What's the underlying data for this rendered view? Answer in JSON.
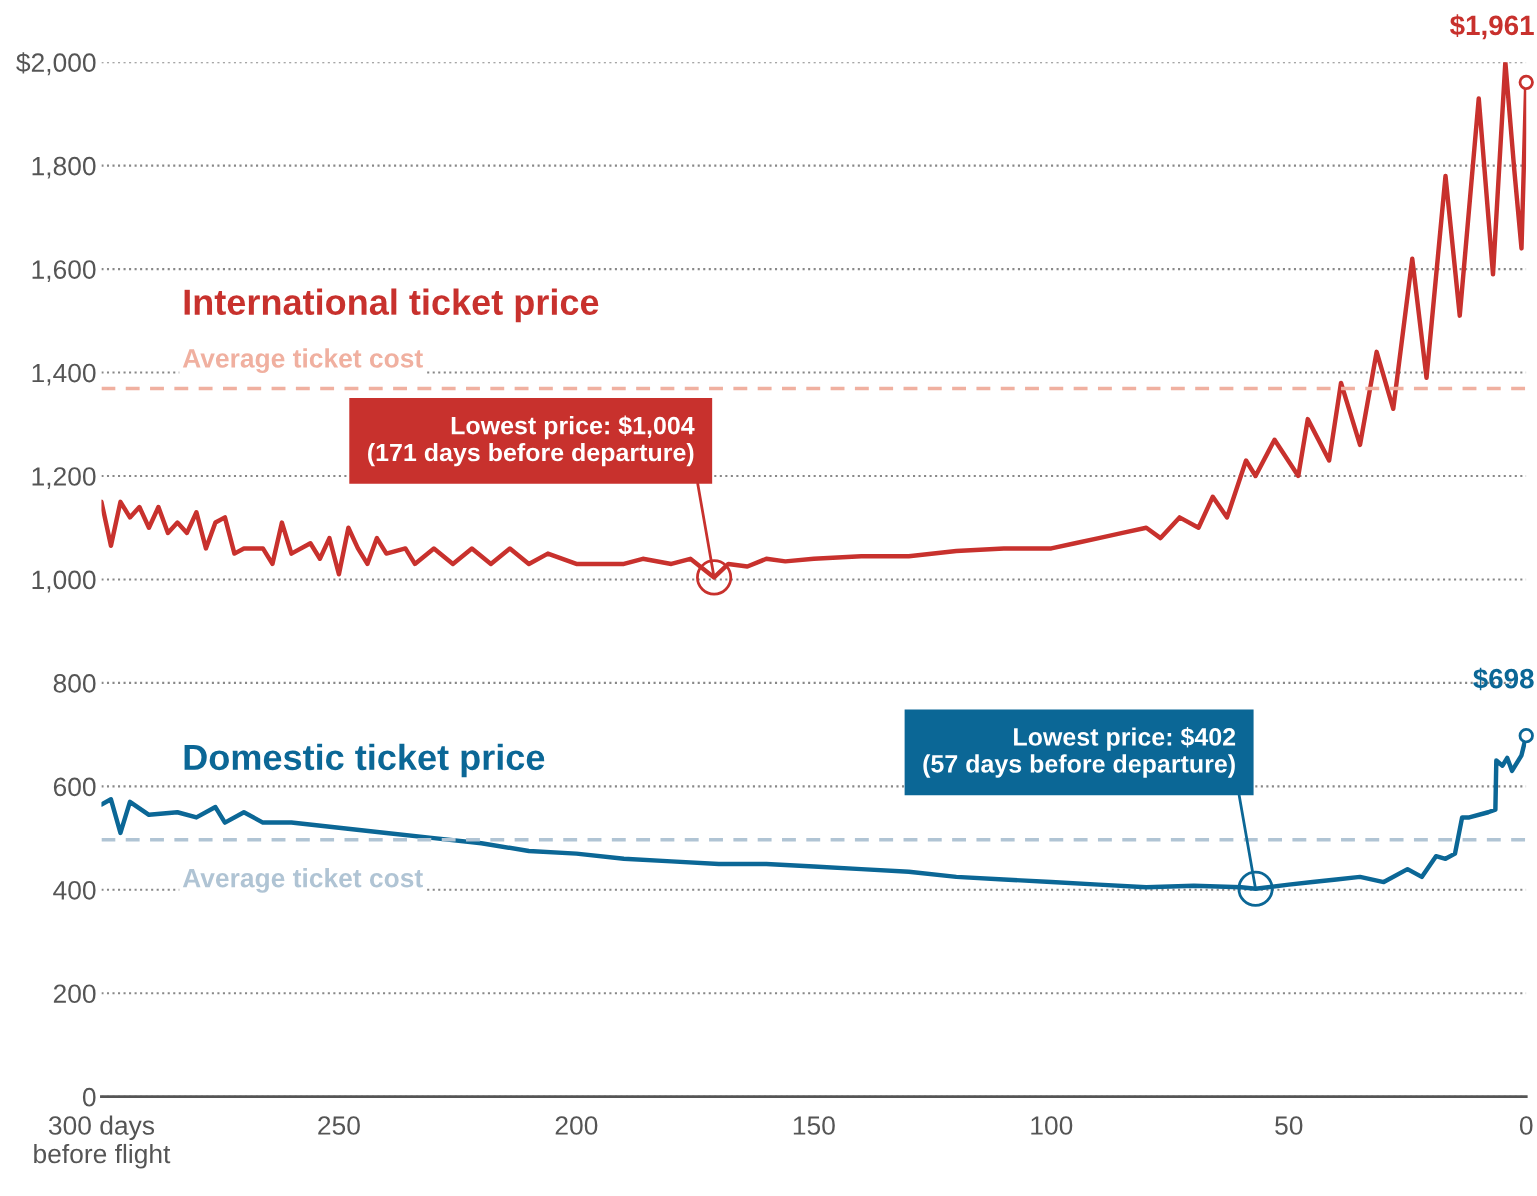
{
  "chart_data": {
    "type": "line",
    "xlim": [
      300,
      0
    ],
    "xticks": [
      {
        "value": 300,
        "label": "300 days\nbefore flight"
      },
      250,
      200,
      150,
      100,
      50,
      0
    ],
    "ylim": [
      0,
      2000
    ],
    "yticks": [
      0,
      200,
      400,
      600,
      800,
      {
        "value": 1000,
        "label": "1,000"
      },
      {
        "value": 1200,
        "label": "1,200"
      },
      {
        "value": 1400,
        "label": "1,400"
      },
      {
        "value": 1600,
        "label": "1,600"
      },
      {
        "value": 1800,
        "label": "1,800"
      },
      {
        "value": 2000,
        "label": "$2,000"
      }
    ],
    "grid": "y",
    "legend": false,
    "series": [
      {
        "name": "International ticket price",
        "color": "#c8312d",
        "x": [
          300,
          298,
          296,
          294,
          292,
          290,
          288,
          286,
          284,
          282,
          280,
          278,
          276,
          274,
          272,
          270,
          266,
          264,
          262,
          260,
          256,
          254,
          252,
          250,
          248,
          246,
          244,
          242,
          240,
          236,
          234,
          230,
          226,
          222,
          218,
          214,
          210,
          206,
          200,
          196,
          190,
          186,
          180,
          176,
          171,
          168,
          164,
          160,
          156,
          150,
          140,
          130,
          120,
          110,
          100,
          95,
          90,
          85,
          80,
          77,
          73,
          69,
          66,
          63,
          59,
          57,
          53,
          48,
          46,
          41.5,
          39,
          35,
          31.5,
          28,
          24,
          21,
          17,
          14,
          10,
          7,
          4.4,
          2.5,
          1,
          0
        ],
        "values": [
          1150,
          1065,
          1150,
          1120,
          1140,
          1100,
          1140,
          1090,
          1110,
          1090,
          1130,
          1060,
          1110,
          1120,
          1050,
          1060,
          1060,
          1030,
          1110,
          1050,
          1070,
          1040,
          1080,
          1010,
          1100,
          1060,
          1030,
          1080,
          1050,
          1060,
          1030,
          1060,
          1030,
          1060,
          1030,
          1060,
          1030,
          1050,
          1030,
          1030,
          1030,
          1040,
          1030,
          1040,
          1004,
          1030,
          1025,
          1040,
          1035,
          1040,
          1045,
          1045,
          1055,
          1060,
          1060,
          1070,
          1080,
          1090,
          1100,
          1080,
          1120,
          1100,
          1160,
          1120,
          1230,
          1200,
          1270,
          1200,
          1310,
          1230,
          1380,
          1260,
          1440,
          1330,
          1620,
          1390,
          1780,
          1510,
          1930,
          1590,
          2000,
          1790,
          1640,
          1961
        ]
      },
      {
        "name": "Domestic ticket price",
        "color": "#0b6796",
        "x": [
          300,
          298,
          296,
          294,
          290,
          284,
          280,
          276,
          274,
          270,
          266,
          260,
          250,
          240,
          230,
          220,
          210,
          200,
          190,
          180,
          170,
          160,
          150,
          140,
          130,
          120,
          110,
          100,
          90,
          80,
          70,
          60,
          57,
          50,
          45,
          40,
          35,
          30,
          25,
          22,
          19,
          17,
          15,
          13.5,
          12,
          8,
          6.5,
          6.3,
          5,
          4,
          3,
          1,
          0
        ],
        "values": [
          565,
          575,
          510,
          570,
          545,
          550,
          540,
          560,
          530,
          550,
          530,
          530,
          520,
          510,
          500,
          490,
          475,
          470,
          460,
          455,
          450,
          450,
          445,
          440,
          435,
          425,
          420,
          415,
          410,
          405,
          408,
          405,
          402,
          410,
          415,
          420,
          425,
          415,
          440,
          425,
          465,
          460,
          470,
          540,
          540,
          550,
          555,
          650,
          640,
          655,
          630,
          660,
          698
        ]
      }
    ],
    "ref_lines": [
      {
        "axis": "y",
        "value": 1369,
        "label": "Average ticket cost",
        "color": "#f0b0a0",
        "line_style": "dashed"
      },
      {
        "axis": "y",
        "value": 497,
        "label": "Average ticket cost",
        "color": "#b0c4d4",
        "line_style": "dashed"
      }
    ],
    "annotations": [
      {
        "text": "Lowest price: $1,004\n(171 days before departure)",
        "x": 171,
        "y": 1004
      },
      {
        "text": "Lowest price: $402\n(57 days before departure)",
        "x": 57,
        "y": 402
      },
      {
        "text": "$1,961",
        "x": 0,
        "y": 1961
      },
      {
        "text": "$698",
        "x": 0,
        "y": 698
      }
    ]
  }
}
